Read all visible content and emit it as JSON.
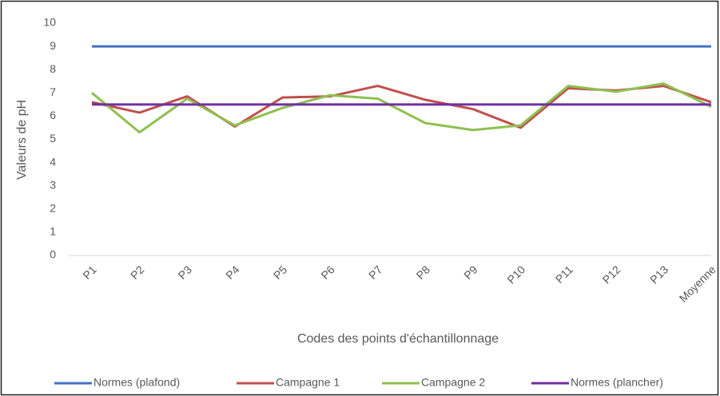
{
  "chart_data": {
    "type": "line",
    "ylabel": "Valeurs de pH",
    "xlabel": "Codes des points d'échantillonnage",
    "categories": [
      "P1",
      "P2",
      "P3",
      "P4",
      "P5",
      "P6",
      "P7",
      "P8",
      "P9",
      "P10",
      "P11",
      "P12",
      "P13",
      "Moyenne"
    ],
    "series": [
      {
        "name": "Normes (plafond)",
        "color": "#4472c4",
        "values": [
          9,
          9,
          9,
          9,
          9,
          9,
          9,
          9,
          9,
          9,
          9,
          9,
          9,
          9
        ]
      },
      {
        "name": "Campagne 1",
        "color": "#c0504d",
        "values": [
          6.6,
          6.15,
          6.85,
          5.55,
          6.8,
          6.85,
          7.3,
          6.7,
          6.3,
          5.5,
          7.2,
          7.1,
          7.3,
          6.6
        ]
      },
      {
        "name": "Campagne 2",
        "color": "#8fc04f",
        "values": [
          7.0,
          5.3,
          6.75,
          5.6,
          6.35,
          6.9,
          6.75,
          5.7,
          5.4,
          5.6,
          7.3,
          7.05,
          7.4,
          6.4
        ]
      },
      {
        "name": "Normes (plancher)",
        "color": "#7030a0",
        "values": [
          6.5,
          6.5,
          6.5,
          6.5,
          6.5,
          6.5,
          6.5,
          6.5,
          6.5,
          6.5,
          6.5,
          6.5,
          6.5,
          6.5
        ]
      }
    ],
    "ylim": [
      0,
      10
    ],
    "yticks": [
      0,
      1,
      2,
      3,
      4,
      5,
      6,
      7,
      8,
      9,
      10
    ],
    "grid": false,
    "legend": "bottom"
  }
}
